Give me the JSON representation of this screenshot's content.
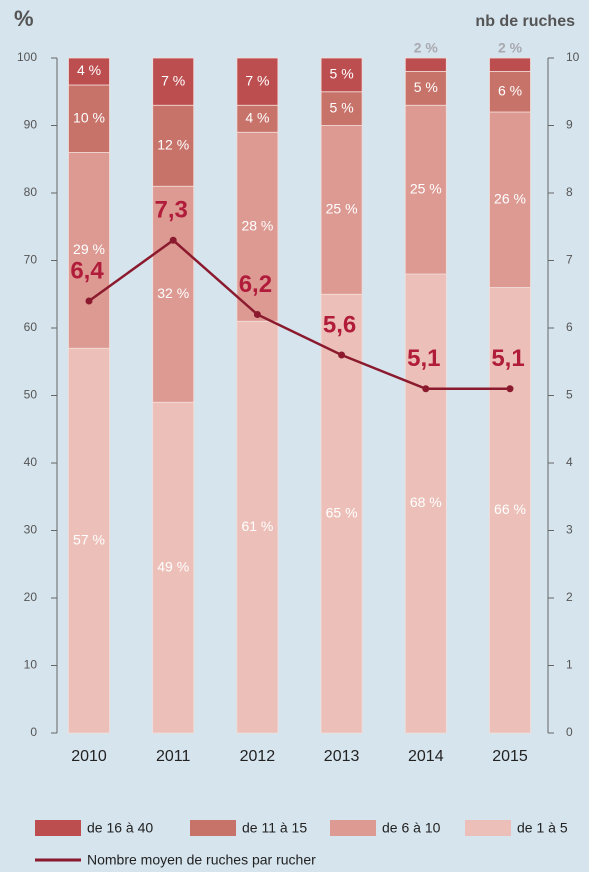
{
  "chart_data": {
    "type": "bar",
    "stacked": true,
    "y_label": "%",
    "y2_label": "nb de ruches",
    "categories": [
      "2010",
      "2011",
      "2012",
      "2013",
      "2014",
      "2015"
    ],
    "ylim": [
      0,
      100
    ],
    "yticks": [
      0,
      10,
      20,
      30,
      40,
      50,
      60,
      70,
      80,
      90,
      100
    ],
    "y2lim": [
      0,
      10
    ],
    "y2ticks": [
      0,
      1,
      2,
      3,
      4,
      5,
      6,
      7,
      8,
      9,
      10
    ],
    "series": [
      {
        "name": "de 1 à 5",
        "color": "#ecc0b9",
        "values": [
          57,
          49,
          61,
          65,
          68,
          66
        ],
        "value_labels": [
          "57 %",
          "49 %",
          "61 %",
          "65 %",
          "68 %",
          "66 %"
        ]
      },
      {
        "name": "de 6 à 10",
        "color": "#dd9a93",
        "values": [
          29,
          32,
          28,
          25,
          25,
          26
        ],
        "value_labels": [
          "29 %",
          "32 %",
          "28 %",
          "25 %",
          "25 %",
          "26 %"
        ]
      },
      {
        "name": "de 11 à 15",
        "color": "#c8736a",
        "values": [
          10,
          12,
          4,
          5,
          5,
          6
        ],
        "value_labels": [
          "10 %",
          "12 %",
          "4 %",
          "5 %",
          "5 %",
          "6 %"
        ]
      },
      {
        "name": "de 16 à 40",
        "color": "#bd4e50",
        "values": [
          4,
          7,
          7,
          5,
          2,
          2
        ],
        "value_labels": [
          "4 %",
          "7 %",
          "7 %",
          "5 %",
          "2 %",
          "2 %"
        ]
      },
      {
        "name": "Nombre moyen de ruches par rucher",
        "type": "line",
        "axis": "y2",
        "color": "#8b1a2e",
        "values": [
          6.4,
          7.3,
          6.2,
          5.6,
          5.1,
          5.1
        ],
        "value_labels": [
          "6,4",
          "7,3",
          "6,2",
          "5,6",
          "5,1",
          "5,1"
        ]
      }
    ]
  }
}
